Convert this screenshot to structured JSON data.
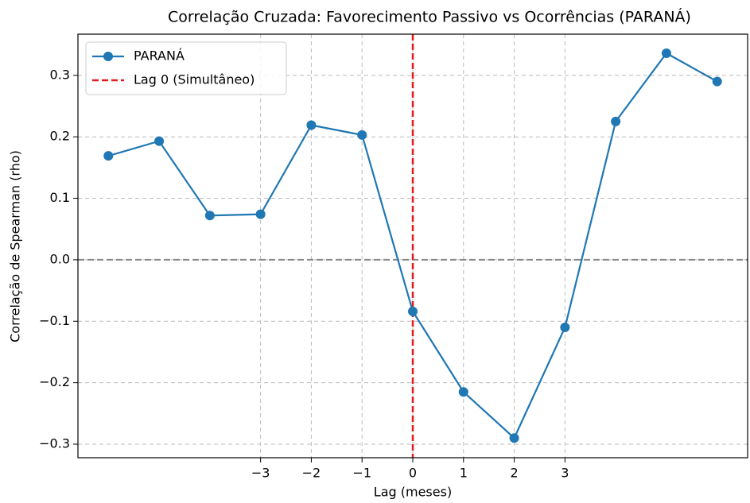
{
  "chart_data": {
    "type": "line",
    "title": "Correlação Cruzada: Favorecimento Passivo vs Ocorrências (PARANÁ)",
    "x_label": "Lag (meses)",
    "y_label": "Correlação de Spearman (rho)",
    "x": [
      -6,
      -5,
      -4,
      -3,
      -2,
      -1,
      0,
      1,
      2,
      3,
      4,
      5,
      6
    ],
    "series": [
      {
        "name": "PARANÁ",
        "color": "#1f77b4",
        "values": [
          0.169,
          0.193,
          0.072,
          0.074,
          0.219,
          0.203,
          -0.084,
          -0.215,
          -0.29,
          -0.11,
          0.225,
          0.336,
          0.29
        ]
      }
    ],
    "reference_lines": [
      {
        "name": "Lag 0 (Simultâneo)",
        "x": 0,
        "color": "#e41a1c"
      }
    ],
    "zero_line": {
      "y": 0,
      "color": "#888888"
    },
    "xlim": [
      -6.6,
      6.6
    ],
    "ylim": [
      -0.322,
      0.367
    ],
    "xticks": [
      {
        "value": -3,
        "label": "−3"
      },
      {
        "value": -2,
        "label": "−2"
      },
      {
        "value": -1,
        "label": "−1"
      },
      0,
      1,
      2,
      3
    ],
    "yticks": [
      {
        "value": -0.3,
        "label": "−0.3"
      },
      {
        "value": -0.2,
        "label": "−0.2"
      },
      {
        "value": -0.1,
        "label": "−0.1"
      },
      {
        "value": 0,
        "label": "0.0"
      },
      0.1,
      0.2,
      0.3
    ],
    "grid": true,
    "legend": "upper left"
  }
}
